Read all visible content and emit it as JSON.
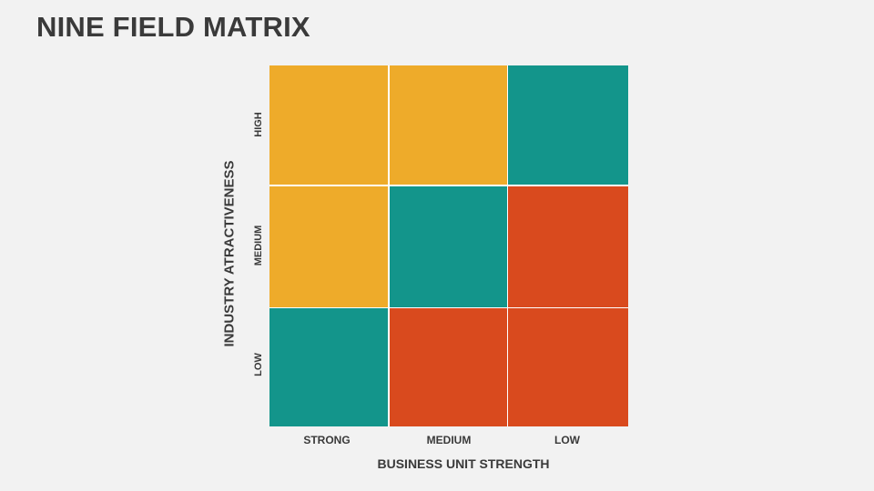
{
  "title": "NINE FIELD MATRIX",
  "colors": {
    "yellow": "#EEAB2A",
    "teal": "#13958B",
    "orange": "#D94A1E"
  },
  "x_axis": {
    "title": "BUSINESS UNIT STRENGTH",
    "labels": [
      "STRONG",
      "MEDIUM",
      "LOW"
    ]
  },
  "y_axis": {
    "title": "INDUSTRY ATRACTIVENESS",
    "labels": [
      "HIGH",
      "MEDIUM",
      "LOW"
    ]
  },
  "matrix": [
    [
      "yellow",
      "yellow",
      "teal"
    ],
    [
      "yellow",
      "teal",
      "orange"
    ],
    [
      "teal",
      "orange",
      "orange"
    ]
  ]
}
